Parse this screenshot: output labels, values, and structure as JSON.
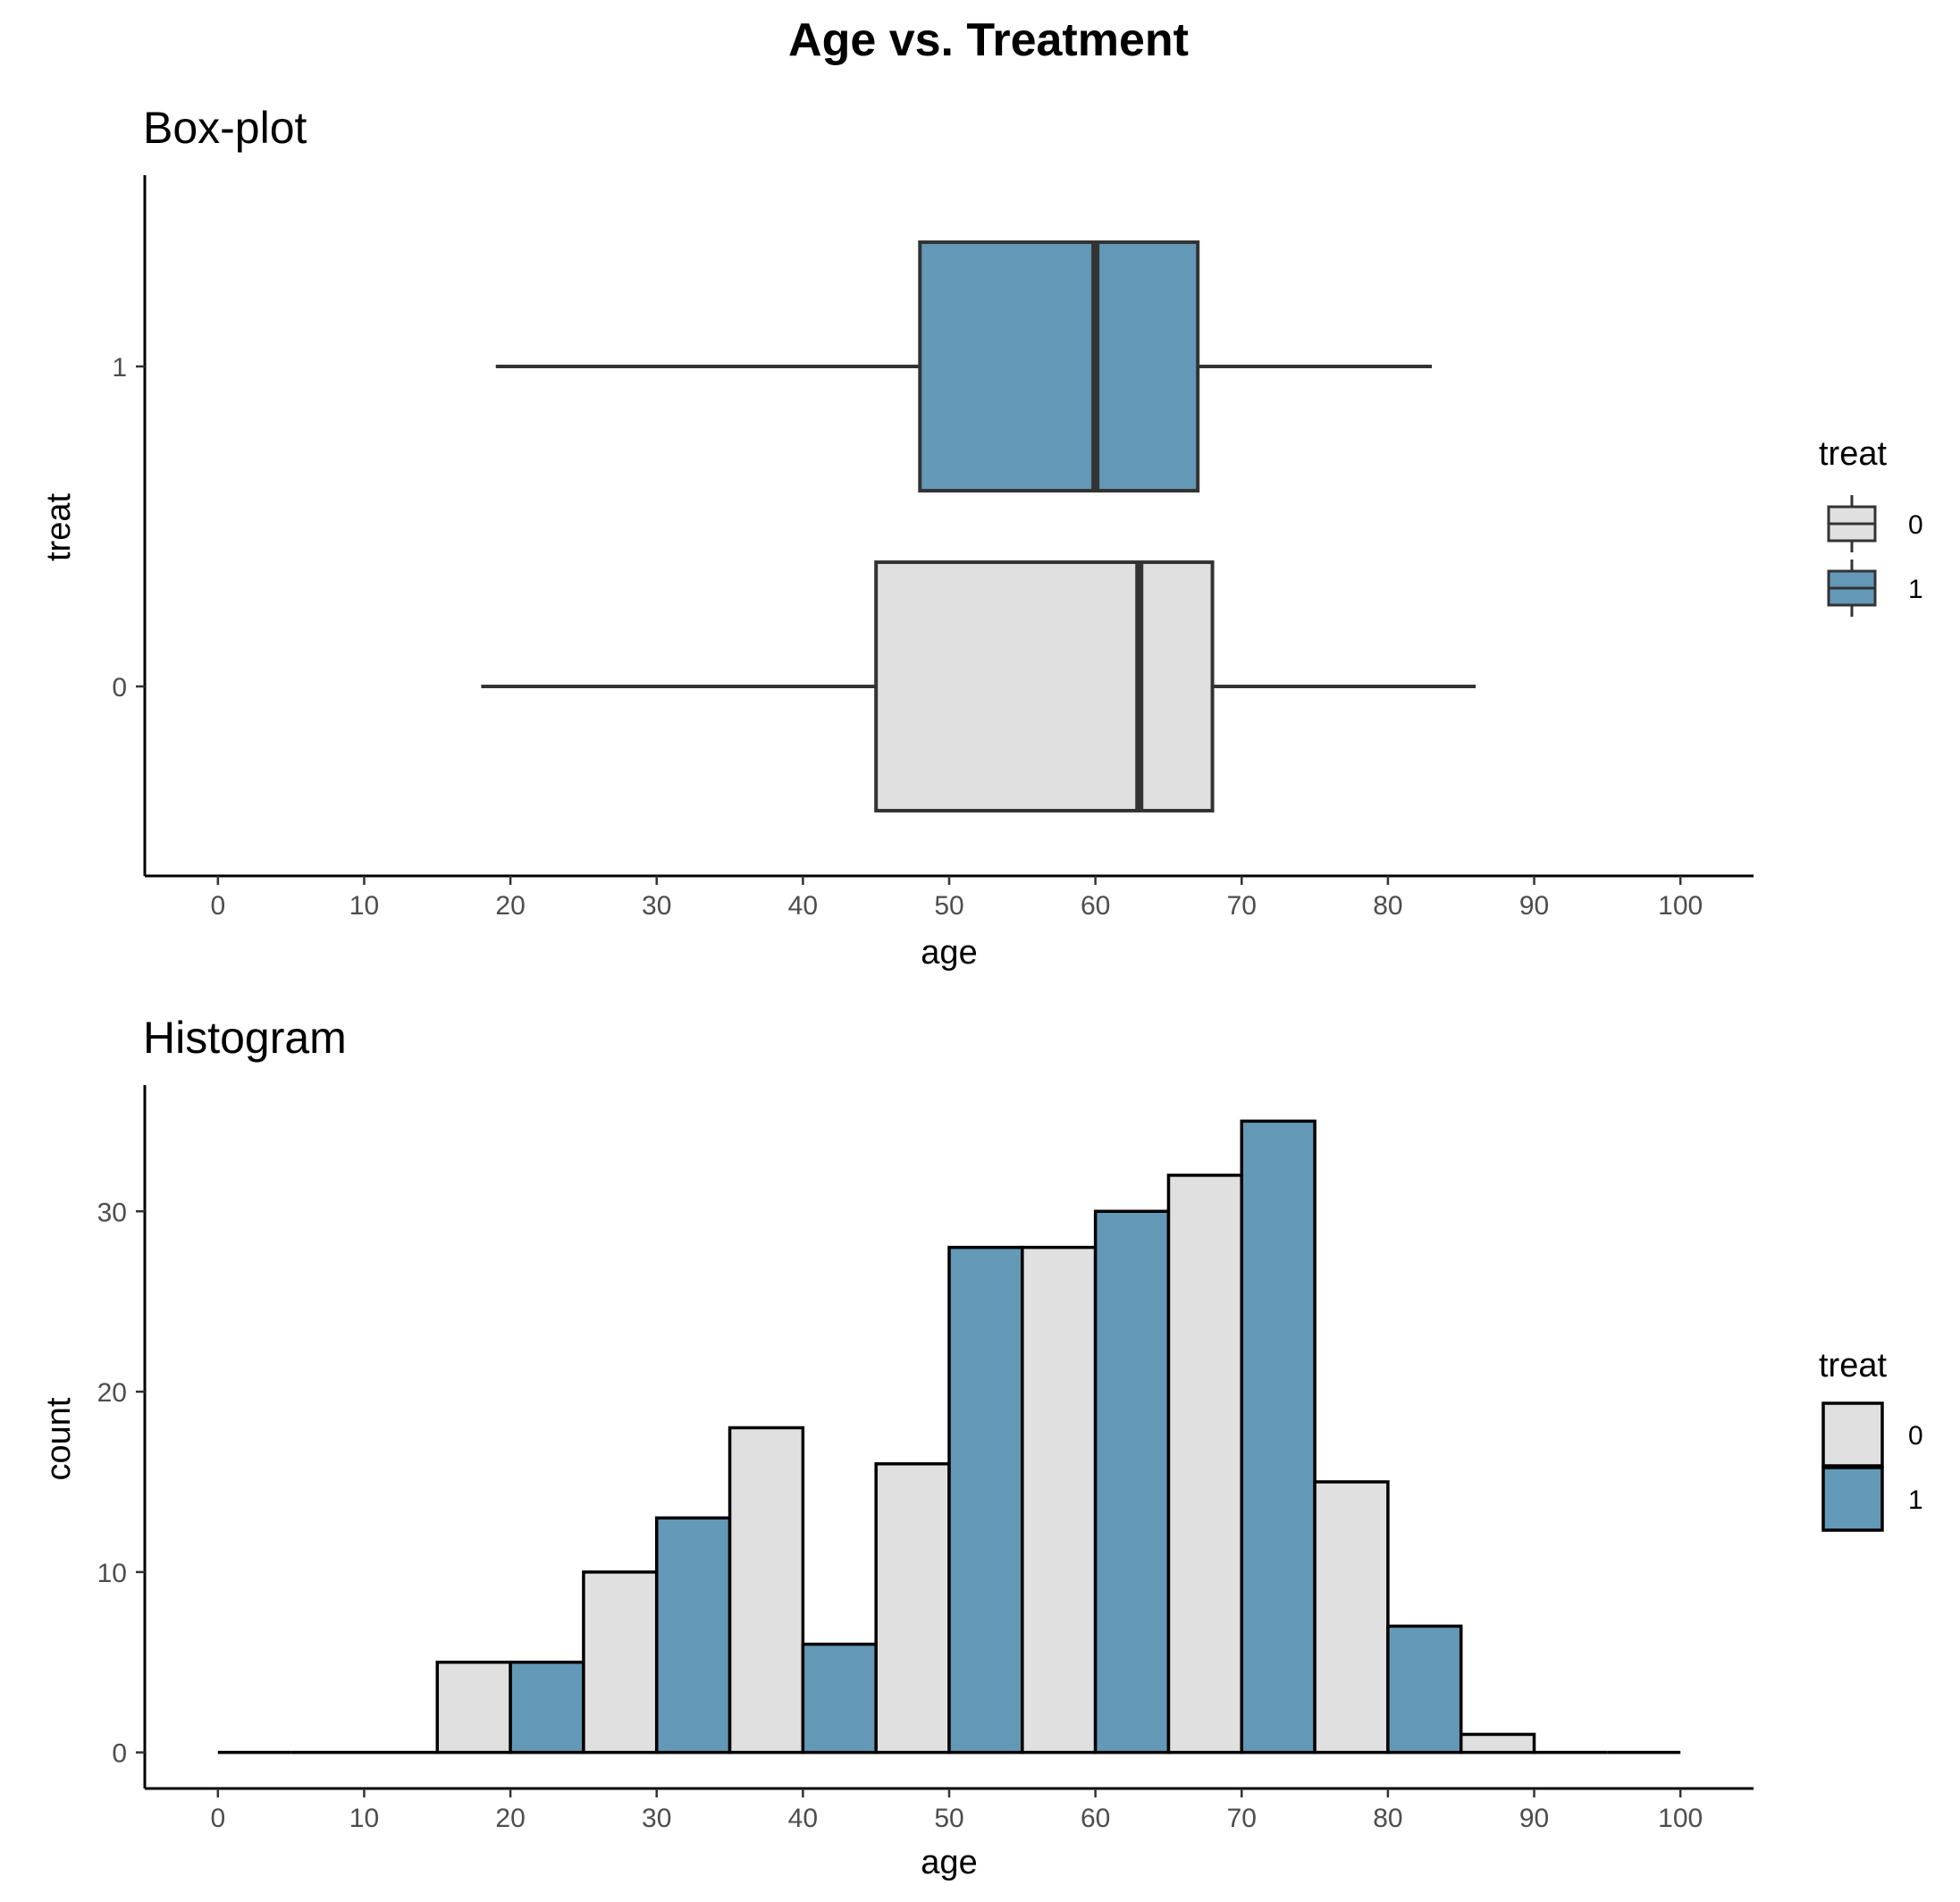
{
  "title": "Age vs. Treatment",
  "colors": {
    "treat_0": "#e0e0e0",
    "treat_1": "#6399b6",
    "box_stroke": "#333333",
    "bar_stroke": "#000000"
  },
  "chart_data": [
    {
      "type": "box",
      "title": "Box-plot",
      "xlabel": "age",
      "ylabel": "treat",
      "xlim": [
        -5,
        105
      ],
      "xticks": [
        0,
        10,
        20,
        30,
        40,
        50,
        60,
        70,
        80,
        90,
        100
      ],
      "categories": [
        "0",
        "1"
      ],
      "legend": {
        "title": "treat",
        "position": "right",
        "entries": [
          "0",
          "1"
        ]
      },
      "series": [
        {
          "name": "0",
          "whisker_low": 18,
          "q1": 45,
          "median": 63,
          "q3": 68,
          "whisker_high": 86
        },
        {
          "name": "1",
          "whisker_low": 19,
          "q1": 48,
          "median": 60,
          "q3": 67,
          "whisker_high": 83
        }
      ]
    },
    {
      "type": "bar",
      "title": "Histogram",
      "xlabel": "age",
      "ylabel": "count",
      "xlim": [
        -5,
        105
      ],
      "ylim": [
        -2,
        37
      ],
      "xticks": [
        0,
        10,
        20,
        30,
        40,
        50,
        60,
        70,
        80,
        90,
        100
      ],
      "yticks": [
        0,
        10,
        20,
        30
      ],
      "bin_width": 5,
      "legend": {
        "title": "treat",
        "position": "right",
        "entries": [
          "0",
          "1"
        ]
      },
      "bins": [
        {
          "start": 0,
          "count": 0,
          "treat": "0"
        },
        {
          "start": 5,
          "count": 0,
          "treat": "0"
        },
        {
          "start": 10,
          "count": 0,
          "treat": "0"
        },
        {
          "start": 15,
          "count": 5,
          "treat": "0"
        },
        {
          "start": 20,
          "count": 5,
          "treat": "1"
        },
        {
          "start": 25,
          "count": 10,
          "treat": "0"
        },
        {
          "start": 30,
          "count": 13,
          "treat": "1"
        },
        {
          "start": 35,
          "count": 18,
          "treat": "0"
        },
        {
          "start": 40,
          "count": 6,
          "treat": "1"
        },
        {
          "start": 45,
          "count": 16,
          "treat": "0"
        },
        {
          "start": 50,
          "count": 28,
          "treat": "1"
        },
        {
          "start": 55,
          "count": 28,
          "treat": "0"
        },
        {
          "start": 60,
          "count": 30,
          "treat": "1"
        },
        {
          "start": 65,
          "count": 32,
          "treat": "0"
        },
        {
          "start": 70,
          "count": 35,
          "treat": "1"
        },
        {
          "start": 75,
          "count": 15,
          "treat": "0"
        },
        {
          "start": 80,
          "count": 7,
          "treat": "1"
        },
        {
          "start": 85,
          "count": 1,
          "treat": "0"
        },
        {
          "start": 90,
          "count": 0,
          "treat": "0"
        },
        {
          "start": 95,
          "count": 0,
          "treat": "0"
        }
      ]
    }
  ]
}
